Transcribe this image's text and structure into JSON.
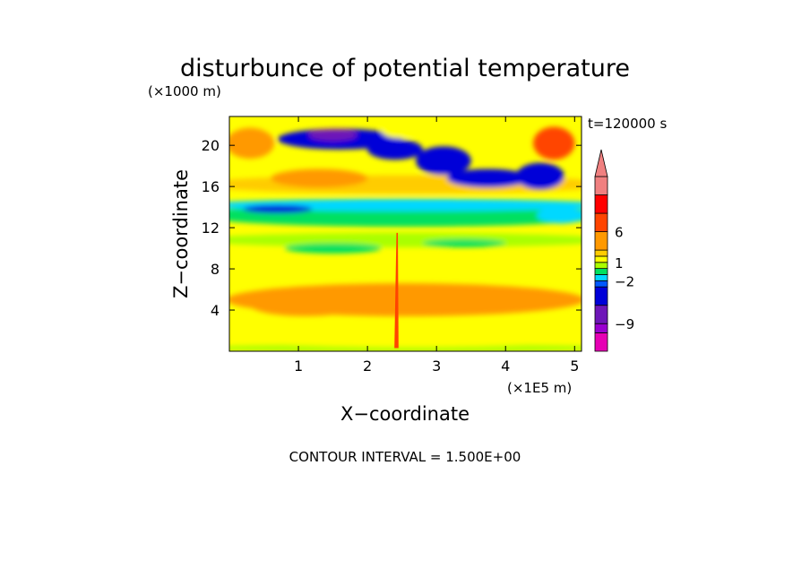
{
  "chart_data": {
    "type": "heatmap",
    "title": "disturbunce of potential temperature",
    "time_label": "t=120000 s",
    "xlabel": "X−coordinate",
    "ylabel": "Z−coordinate",
    "x_unit": "(×1E5 m)",
    "y_unit": "(×1000 m)",
    "xlim": [
      0,
      5.1
    ],
    "ylim": [
      0,
      22.8
    ],
    "x_ticks": [
      "1",
      "2",
      "3",
      "4",
      "5"
    ],
    "x_tick_values": [
      1,
      2,
      3,
      4,
      5
    ],
    "y_ticks": [
      "4",
      "8",
      "12",
      "16",
      "20"
    ],
    "y_tick_values": [
      4,
      8,
      12,
      16,
      20
    ],
    "contour_interval_text": "CONTOUR INTERVAL = 1.500E+00",
    "colorbar": {
      "labels": [
        "6",
        "1",
        "−2",
        "−9"
      ],
      "label_values": [
        6,
        1,
        -2,
        -9
      ],
      "levels": [
        {
          "min": -13.5,
          "max": -10.5,
          "color": "#e600b4"
        },
        {
          "min": -10.5,
          "max": -9,
          "color": "#9a00d0"
        },
        {
          "min": -9,
          "max": -6,
          "color": "#6e16b8"
        },
        {
          "min": -6,
          "max": -3,
          "color": "#0000d8"
        },
        {
          "min": -3,
          "max": -2,
          "color": "#0058ff"
        },
        {
          "min": -2,
          "max": -1,
          "color": "#00d8ff"
        },
        {
          "min": -1,
          "max": 0,
          "color": "#00e060"
        },
        {
          "min": 0,
          "max": 1,
          "color": "#aaff00"
        },
        {
          "min": 1,
          "max": 2,
          "color": "#ffff00"
        },
        {
          "min": 2,
          "max": 3,
          "color": "#ffcc00"
        },
        {
          "min": 3,
          "max": 6,
          "color": "#ff9900"
        },
        {
          "min": 6,
          "max": 9,
          "color": "#ff4400"
        },
        {
          "min": 9,
          "max": 12,
          "color": "#ff0000"
        },
        {
          "min": 12,
          "max": 15,
          "color": "#f08080"
        }
      ]
    }
  }
}
